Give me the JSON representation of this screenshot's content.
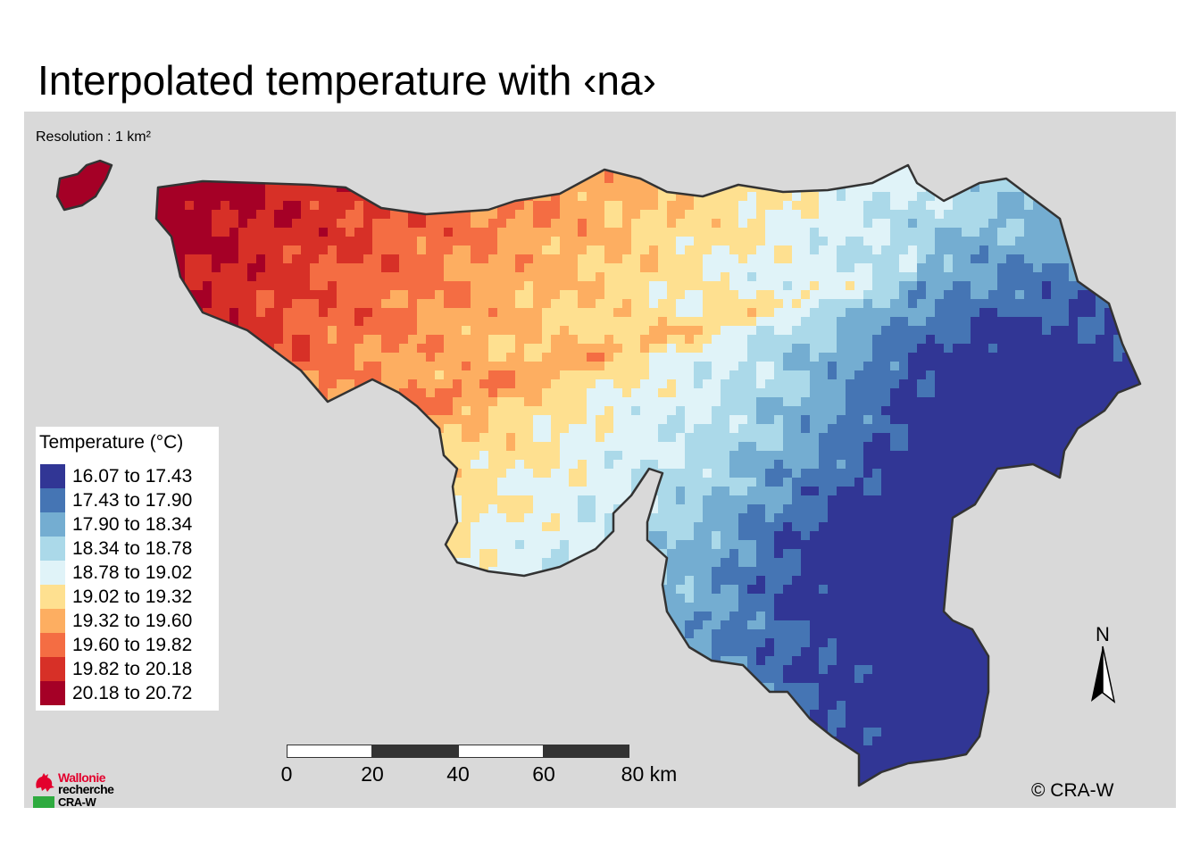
{
  "title": "Interpolated temperature with  ‹na›",
  "map": {
    "resolution_note": "Resolution : 1 km²",
    "background_color": "#d9d9d9",
    "boundary_color": "#333333",
    "pattern": "temperature decreasing from warm north-west (Hainaut, Meuse/Sambre valleys) to cool south-east (Ardennes, High Fens)"
  },
  "legend": {
    "title": "Temperature (°C)",
    "items": [
      {
        "label": "16.07 to 17.43",
        "color": "#313695"
      },
      {
        "label": "17.43 to 17.90",
        "color": "#4575b4"
      },
      {
        "label": "17.90 to 18.34",
        "color": "#74add1"
      },
      {
        "label": "18.34 to 18.78",
        "color": "#abd9e9"
      },
      {
        "label": "18.78 to 19.02",
        "color": "#e0f3f8"
      },
      {
        "label": "19.02 to 19.32",
        "color": "#fee090"
      },
      {
        "label": "19.32 to 19.60",
        "color": "#fdae61"
      },
      {
        "label": "19.60 to 19.82",
        "color": "#f46d43"
      },
      {
        "label": "19.82 to 20.18",
        "color": "#d73027"
      },
      {
        "label": "20.18 to 20.72",
        "color": "#a50026"
      }
    ]
  },
  "north_arrow": {
    "label": "N",
    "icon": "north-arrow-icon"
  },
  "scale_bar": {
    "ticks": [
      "0",
      "20",
      "40",
      "60",
      "80 km"
    ],
    "unit": "km"
  },
  "copyright": "© CRA-W",
  "logo": {
    "line1": "Wallonie",
    "line2": "recherche",
    "line3": "CRA-W",
    "brand_red": "#e3002d",
    "brand_green": "#2eab3f"
  }
}
